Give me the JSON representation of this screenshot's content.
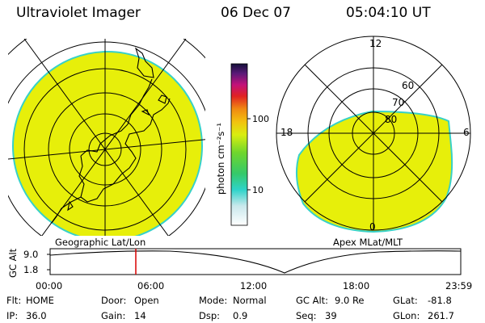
{
  "header": {
    "instrument": "Ultraviolet Imager",
    "date": "06 Dec 07",
    "time": "05:04:10 UT"
  },
  "colors": {
    "fill": "#e7ef0a",
    "edge": "#37d1c8",
    "land": "#000000",
    "time_marker": "#d80000"
  },
  "geo_panel": {
    "label": "Geographic Lat/Lon"
  },
  "apex_panel": {
    "label": "Apex MLat/MLT",
    "mlt_labels": {
      "top": "12",
      "left": "18",
      "right": "6",
      "bottom": "0"
    },
    "lat_labels": [
      "60",
      "70",
      "80"
    ]
  },
  "colorbar": {
    "unit": "photon cm⁻²s⁻¹",
    "ticks": [
      "100",
      "10"
    ]
  },
  "altitude_plot": {
    "ylabel": "GC Alt",
    "yticks": [
      "9.0",
      "1.8"
    ],
    "xticks": [
      "00:00",
      "06:00",
      "12:00",
      "18:00",
      "23:59"
    ]
  },
  "status": {
    "row1": [
      {
        "label": "Flt:",
        "value": "HOME"
      },
      {
        "label": "Door:",
        "value": "Open"
      },
      {
        "label": "Mode:",
        "value": "Normal"
      },
      {
        "label": "GC Alt:",
        "value": "9.0 Re"
      },
      {
        "label": "GLat:",
        "value": "-81.8"
      }
    ],
    "row2": [
      {
        "label": "IP:",
        "value": "36.0"
      },
      {
        "label": "Gain:",
        "value": "14"
      },
      {
        "label": "Dsp:",
        "value": "0.9"
      },
      {
        "label": "Seq:",
        "value": "39"
      },
      {
        "label": "GLon:",
        "value": "261.7"
      }
    ]
  }
}
